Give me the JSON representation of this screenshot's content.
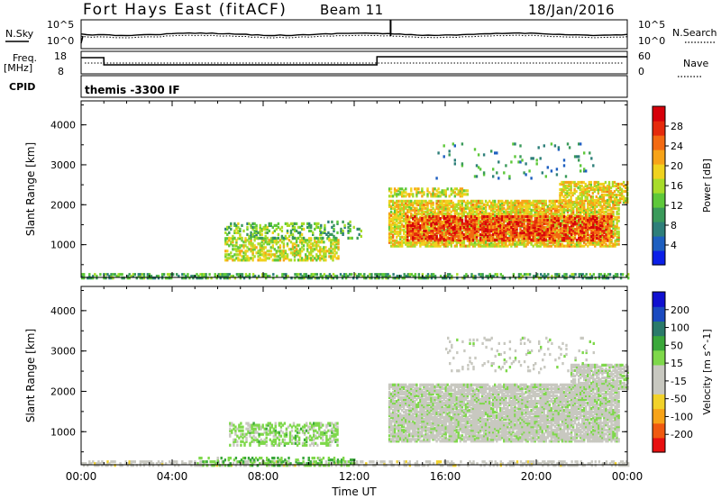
{
  "header": {
    "title": "Fort Hays East (fitACF)",
    "beam": "Beam 11",
    "date": "18/Jan/2016"
  },
  "status_panel": {
    "nsky_label": "N.Sky",
    "nsearch_label": "N.Search",
    "noise_tick_top": "10^5",
    "noise_tick_bottom": "10^0",
    "freq_label": "Freq.",
    "freq_unit": "[MHz]",
    "freq_tick_top": "18",
    "freq_tick_bottom": "8",
    "nave_label": "Nave",
    "nave_tick_top": "60",
    "nave_tick_bottom": "0",
    "cpid_label": "CPID",
    "cpid_value": "themis -3300 IF"
  },
  "chart_data": [
    {
      "type": "heatmap",
      "name": "power",
      "xlabel": "",
      "ylabel": "Slant Range [km]",
      "x_ticks": [
        "00:00",
        "04:00",
        "08:00",
        "12:00",
        "16:00",
        "20:00",
        "00:00"
      ],
      "x_range_hours": [
        0,
        24
      ],
      "yticks": [
        1000,
        2000,
        3000,
        4000
      ],
      "ylim": [
        180,
        4600
      ],
      "colorbar": {
        "label": "Power [dB]",
        "ticks": [
          "4",
          "8",
          "12",
          "16",
          "20",
          "24",
          "28"
        ],
        "range": [
          0,
          30
        ],
        "colors": [
          "#0b1fe8",
          "#1e5fc0",
          "#2e7f7a",
          "#3a9a5a",
          "#5ec83a",
          "#a8dc2a",
          "#f0d21e",
          "#f7a318",
          "#f36a12",
          "#e52a0c",
          "#d6000a"
        ]
      },
      "regions": [
        {
          "t": [
            0.0,
            24.0
          ],
          "r": [
            200,
            330
          ],
          "db": 10,
          "density": 0.5
        },
        {
          "t": [
            6.3,
            11.3
          ],
          "r": [
            650,
            1200
          ],
          "db": 16,
          "density": 0.55
        },
        {
          "t": [
            6.3,
            10.6
          ],
          "r": [
            1200,
            1600
          ],
          "db": 12,
          "density": 0.35
        },
        {
          "t": [
            10.5,
            12.3
          ],
          "r": [
            1200,
            1650
          ],
          "db": 10,
          "density": 0.3
        },
        {
          "t": [
            13.5,
            23.6
          ],
          "r": [
            1000,
            2150
          ],
          "db": 18,
          "density": 0.75
        },
        {
          "t": [
            14.3,
            23.3
          ],
          "r": [
            1150,
            1750
          ],
          "db": 26,
          "density": 0.6
        },
        {
          "t": [
            13.5,
            17.0
          ],
          "r": [
            2250,
            2450
          ],
          "db": 16,
          "density": 0.55
        },
        {
          "t": [
            21.0,
            24.0
          ],
          "r": [
            2100,
            2600
          ],
          "db": 18,
          "density": 0.6
        },
        {
          "t": [
            15.5,
            22.5
          ],
          "r": [
            2700,
            3600
          ],
          "db": 8,
          "density": 0.05
        }
      ]
    },
    {
      "type": "heatmap",
      "name": "velocity",
      "xlabel": "Time UT",
      "ylabel": "Slant Range [km]",
      "x_ticks": [
        "00:00",
        "04:00",
        "08:00",
        "12:00",
        "16:00",
        "20:00",
        "00:00"
      ],
      "x_range_hours": [
        0,
        24
      ],
      "yticks": [
        1000,
        2000,
        3000,
        4000
      ],
      "ylim": [
        180,
        4600
      ],
      "colorbar": {
        "label": "Velocity [m s^-1]",
        "ticks": [
          "200",
          "100",
          "50",
          "15",
          "-15",
          "-50",
          "-100",
          "-200"
        ],
        "range": [
          -250,
          250
        ],
        "colors": [
          "#e81010",
          "#f05a10",
          "#f7a318",
          "#f2d22a",
          "#c8c8c0",
          "#c8c8c0",
          "#7ed84a",
          "#3aa83a",
          "#2a7a6a",
          "#1a4ac0",
          "#1010d0"
        ]
      },
      "regions": [
        {
          "t": [
            0.0,
            24.0
          ],
          "r": [
            200,
            300
          ],
          "v": -40,
          "density": 0.45
        },
        {
          "t": [
            5.0,
            12.0
          ],
          "r": [
            200,
            420
          ],
          "v": 60,
          "density": 0.35
        },
        {
          "t": [
            6.5,
            11.3
          ],
          "r": [
            700,
            1250
          ],
          "v": 40,
          "density": 0.45
        },
        {
          "t": [
            13.5,
            23.6
          ],
          "r": [
            800,
            2200
          ],
          "v": 0,
          "density": 0.85
        },
        {
          "t": [
            21.5,
            24.0
          ],
          "r": [
            2100,
            2700
          ],
          "v": 0,
          "density": 0.7
        },
        {
          "t": [
            16.0,
            22.5
          ],
          "r": [
            2500,
            3400
          ],
          "v": 0,
          "density": 0.08
        }
      ]
    }
  ]
}
